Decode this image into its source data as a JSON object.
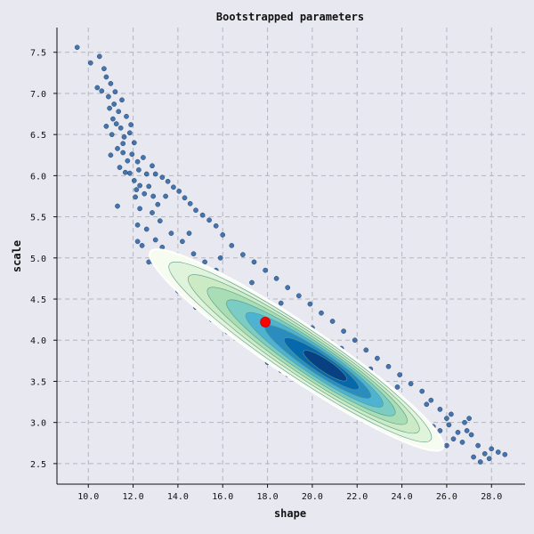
{
  "chart_data": {
    "type": "scatter",
    "title": "Bootstrapped parameters",
    "xlabel": "shape",
    "ylabel": "scale",
    "xlim": [
      8.6,
      29.5
    ],
    "ylim": [
      2.25,
      7.8
    ],
    "grid": true,
    "xticks": [
      "10.0",
      "12.0",
      "14.0",
      "16.0",
      "18.0",
      "20.0",
      "22.0",
      "24.0",
      "26.0",
      "28.0"
    ],
    "yticks": [
      "2.5",
      "3.0",
      "3.5",
      "4.0",
      "4.5",
      "5.0",
      "5.5",
      "6.0",
      "6.5",
      "7.0",
      "7.5"
    ],
    "colors": {
      "background": "#e8e8f0",
      "points": "#2a5f9e",
      "highlight": "#ff0000",
      "grid": "#b4b4c0",
      "density": [
        "#f7fcf0",
        "#e0f3db",
        "#ccebc5",
        "#a8ddb5",
        "#7bccc4",
        "#4eb3d3",
        "#2b8cbe",
        "#0868ac",
        "#084081"
      ]
    },
    "highlight_point": {
      "x": 17.9,
      "y": 4.22
    },
    "density_levels": 8,
    "series": [
      {
        "points": [
          [
            9.5,
            7.56
          ],
          [
            10.1,
            7.37
          ],
          [
            10.5,
            7.45
          ],
          [
            10.7,
            7.3
          ],
          [
            10.4,
            7.07
          ],
          [
            10.6,
            7.03
          ],
          [
            10.8,
            7.2
          ],
          [
            11.0,
            7.12
          ],
          [
            10.9,
            6.96
          ],
          [
            11.2,
            7.02
          ],
          [
            10.95,
            6.82
          ],
          [
            11.15,
            6.87
          ],
          [
            11.35,
            6.78
          ],
          [
            11.5,
            6.92
          ],
          [
            11.7,
            6.72
          ],
          [
            11.9,
            6.62
          ],
          [
            11.25,
            6.63
          ],
          [
            11.05,
            6.5
          ],
          [
            11.45,
            6.58
          ],
          [
            11.6,
            6.47
          ],
          [
            11.85,
            6.52
          ],
          [
            12.05,
            6.4
          ],
          [
            11.3,
            6.33
          ],
          [
            11.55,
            6.28
          ],
          [
            11.75,
            6.18
          ],
          [
            11.95,
            6.26
          ],
          [
            12.2,
            6.17
          ],
          [
            12.45,
            6.22
          ],
          [
            12.6,
            6.02
          ],
          [
            11.4,
            6.1
          ],
          [
            11.65,
            6.04
          ],
          [
            11.85,
            6.03
          ],
          [
            12.05,
            5.94
          ],
          [
            12.3,
            5.88
          ],
          [
            11.3,
            5.63
          ],
          [
            12.15,
            5.83
          ],
          [
            12.5,
            5.78
          ],
          [
            12.7,
            5.87
          ],
          [
            13.0,
            6.02
          ],
          [
            13.3,
            5.98
          ],
          [
            13.55,
            5.93
          ],
          [
            13.8,
            5.86
          ],
          [
            14.05,
            5.81
          ],
          [
            14.3,
            5.73
          ],
          [
            14.55,
            5.66
          ],
          [
            14.8,
            5.58
          ],
          [
            15.1,
            5.52
          ],
          [
            15.4,
            5.46
          ],
          [
            15.7,
            5.39
          ],
          [
            16.0,
            5.28
          ],
          [
            12.2,
            5.4
          ],
          [
            12.6,
            5.35
          ],
          [
            13.0,
            5.22
          ],
          [
            13.3,
            5.13
          ],
          [
            13.6,
            5.03
          ],
          [
            13.9,
            4.93
          ],
          [
            14.25,
            4.83
          ],
          [
            14.6,
            4.74
          ],
          [
            14.95,
            4.64
          ],
          [
            15.3,
            4.55
          ],
          [
            15.7,
            4.46
          ],
          [
            16.1,
            4.36
          ],
          [
            16.55,
            4.27
          ],
          [
            17.0,
            4.17
          ],
          [
            12.2,
            5.2
          ],
          [
            12.7,
            4.95
          ],
          [
            13.4,
            4.8
          ],
          [
            14.0,
            4.6
          ],
          [
            14.6,
            4.5
          ],
          [
            15.2,
            4.35
          ],
          [
            15.8,
            4.25
          ],
          [
            16.6,
            4.1
          ],
          [
            17.2,
            3.98
          ],
          [
            17.9,
            3.85
          ],
          [
            16.4,
            5.15
          ],
          [
            16.9,
            5.04
          ],
          [
            17.4,
            4.95
          ],
          [
            17.9,
            4.85
          ],
          [
            18.4,
            4.75
          ],
          [
            18.9,
            4.64
          ],
          [
            19.4,
            4.54
          ],
          [
            19.9,
            4.44
          ],
          [
            20.4,
            4.33
          ],
          [
            20.9,
            4.23
          ],
          [
            21.4,
            4.11
          ],
          [
            21.9,
            4.0
          ],
          [
            18.0,
            3.73
          ],
          [
            18.6,
            3.63
          ],
          [
            19.2,
            3.54
          ],
          [
            19.9,
            3.45
          ],
          [
            20.5,
            3.36
          ],
          [
            21.1,
            3.26
          ],
          [
            21.7,
            3.17
          ],
          [
            22.3,
            3.08
          ],
          [
            22.9,
            3.0
          ],
          [
            23.5,
            2.93
          ],
          [
            24.1,
            2.86
          ],
          [
            22.4,
            3.88
          ],
          [
            22.9,
            3.78
          ],
          [
            23.4,
            3.68
          ],
          [
            23.9,
            3.58
          ],
          [
            24.4,
            3.47
          ],
          [
            24.9,
            3.38
          ],
          [
            25.3,
            3.27
          ],
          [
            25.7,
            3.16
          ],
          [
            26.0,
            3.05
          ],
          [
            24.6,
            2.85
          ],
          [
            25.0,
            2.82
          ],
          [
            25.4,
            2.95
          ],
          [
            25.7,
            2.9
          ],
          [
            26.1,
            2.97
          ],
          [
            26.5,
            2.88
          ],
          [
            26.8,
            3.0
          ],
          [
            27.0,
            3.05
          ],
          [
            26.3,
            2.8
          ],
          [
            26.7,
            2.76
          ],
          [
            27.1,
            2.85
          ],
          [
            27.4,
            2.72
          ],
          [
            27.7,
            2.62
          ],
          [
            28.0,
            2.68
          ],
          [
            27.2,
            2.58
          ],
          [
            27.5,
            2.52
          ],
          [
            27.9,
            2.56
          ],
          [
            28.3,
            2.64
          ],
          [
            28.6,
            2.61
          ],
          [
            26.0,
            2.72
          ],
          [
            25.3,
            2.75
          ],
          [
            24.3,
            2.95
          ],
          [
            23.6,
            2.9
          ],
          [
            22.9,
            3.12
          ],
          [
            22.2,
            3.05
          ],
          [
            21.5,
            3.22
          ],
          [
            20.9,
            3.28
          ],
          [
            20.2,
            3.4
          ],
          [
            19.6,
            3.48
          ],
          [
            18.9,
            3.58
          ],
          [
            18.3,
            3.72
          ],
          [
            17.6,
            3.85
          ],
          [
            16.9,
            3.98
          ],
          [
            16.2,
            4.1
          ],
          [
            15.5,
            4.25
          ],
          [
            14.8,
            4.4
          ],
          [
            14.1,
            4.62
          ],
          [
            13.5,
            4.77
          ],
          [
            12.9,
            4.95
          ],
          [
            12.4,
            5.15
          ],
          [
            12.3,
            5.6
          ],
          [
            12.1,
            5.74
          ],
          [
            12.85,
            5.55
          ],
          [
            13.2,
            5.45
          ],
          [
            13.7,
            5.3
          ],
          [
            14.2,
            5.2
          ],
          [
            14.7,
            5.05
          ],
          [
            15.2,
            4.95
          ],
          [
            15.7,
            4.85
          ],
          [
            16.2,
            4.75
          ],
          [
            16.8,
            4.6
          ],
          [
            17.4,
            4.5
          ],
          [
            18.1,
            4.4
          ],
          [
            18.7,
            4.3
          ],
          [
            19.3,
            4.15
          ],
          [
            19.9,
            4.05
          ],
          [
            20.5,
            3.95
          ],
          [
            21.1,
            3.8
          ],
          [
            21.7,
            3.7
          ],
          [
            22.3,
            3.6
          ],
          [
            22.9,
            3.45
          ],
          [
            23.5,
            3.35
          ],
          [
            24.1,
            3.22
          ],
          [
            24.7,
            3.12
          ],
          [
            11.1,
            6.69
          ],
          [
            11.55,
            6.39
          ],
          [
            12.25,
            6.07
          ],
          [
            12.85,
            6.12
          ],
          [
            10.8,
            6.6
          ],
          [
            11.0,
            6.25
          ],
          [
            12.9,
            5.75
          ],
          [
            13.1,
            5.65
          ],
          [
            13.45,
            5.75
          ],
          [
            14.5,
            5.3
          ],
          [
            15.9,
            5.0
          ],
          [
            17.3,
            4.7
          ],
          [
            18.6,
            4.45
          ],
          [
            20.0,
            4.15
          ],
          [
            21.3,
            3.9
          ],
          [
            22.6,
            3.65
          ],
          [
            23.8,
            3.43
          ],
          [
            25.1,
            3.22
          ],
          [
            26.2,
            3.1
          ],
          [
            26.9,
            2.9
          ]
        ]
      }
    ]
  }
}
